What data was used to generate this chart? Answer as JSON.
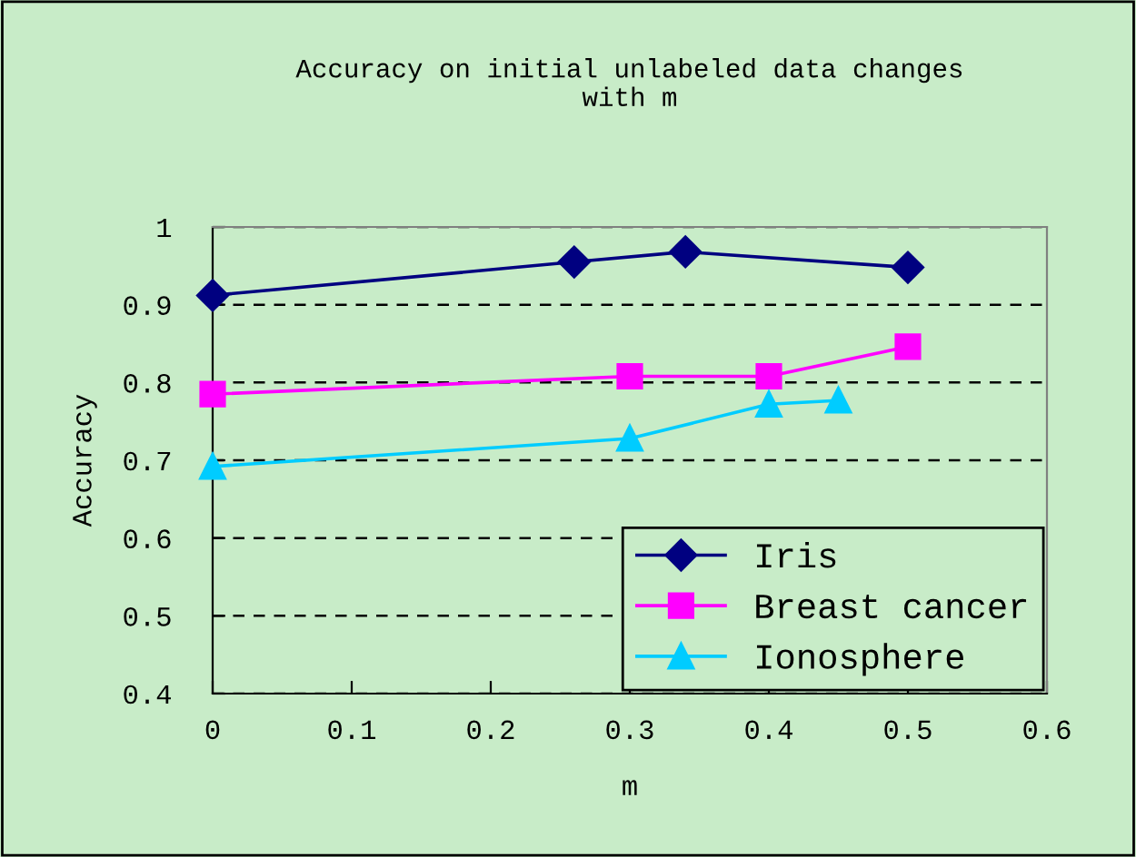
{
  "chart_data": {
    "type": "line",
    "title": "Accuracy on initial unlabeled data changes\nwith m",
    "xlabel": "m",
    "ylabel": "Accuracy",
    "xlim": [
      0,
      0.6
    ],
    "xticks": [
      {
        "value": 0,
        "label": "0"
      },
      0.1,
      0.2,
      0.3,
      0.4,
      0.5,
      0.6
    ],
    "ylim": [
      0.4,
      1
    ],
    "yticks": [
      0.4,
      0.5,
      0.6,
      0.7,
      0.8,
      0.9,
      {
        "value": 1,
        "label": "1"
      }
    ],
    "grid": "y",
    "legend": "bottom right",
    "series": [
      {
        "name": "Iris",
        "color": "#000080",
        "marker": "diamond",
        "x": [
          0,
          0.26,
          0.34,
          0.5
        ],
        "values": [
          0.912,
          0.955,
          0.968,
          0.948
        ]
      },
      {
        "name": "Breast cancer",
        "color": "#ff00ff",
        "marker": "square",
        "x": [
          0,
          0.3,
          0.4,
          0.5
        ],
        "values": [
          0.785,
          0.808,
          0.808,
          0.846
        ]
      },
      {
        "name": "Ionosphere",
        "color": "#00ccff",
        "marker": "triangle",
        "x": [
          0,
          0.3,
          0.4,
          0.45
        ],
        "values": [
          0.692,
          0.728,
          0.772,
          0.777
        ]
      }
    ]
  }
}
